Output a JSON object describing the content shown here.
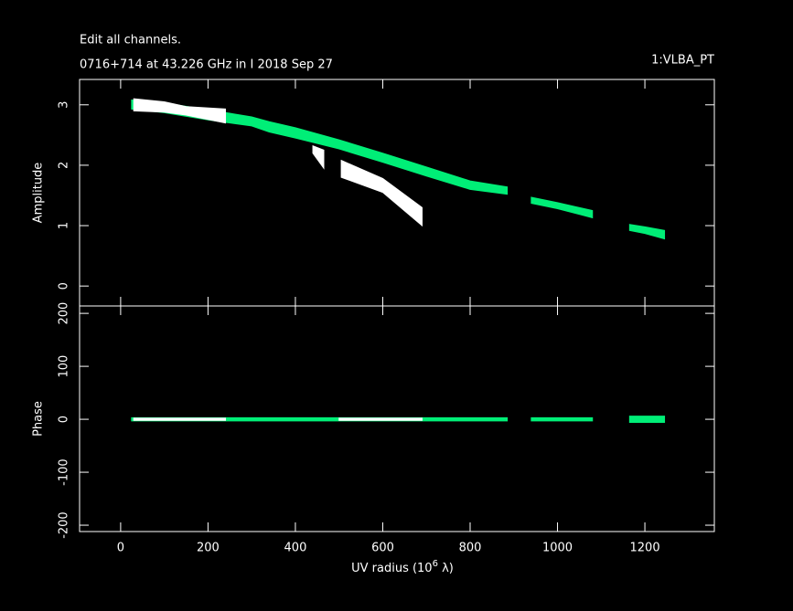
{
  "chart_data": [
    {
      "type": "band",
      "title": "Edit all channels.",
      "subtitle": "0716+714 at 43.226 GHz in I  2018 Sep 27",
      "annotation": "1:VLBA_PT",
      "y_label": "Amplitude",
      "xlim": [
        -94,
        1359
      ],
      "ylim": [
        -0.33,
        3.42
      ],
      "yticks": [
        0,
        1,
        2,
        3
      ],
      "series": [
        {
          "color": "#00ee77",
          "x": [
            25,
            100,
            200,
            300,
            340,
            400,
            500,
            600,
            700,
            800,
            885,
            915,
            940,
            1000,
            1080,
            1120,
            1165,
            1200,
            1245
          ],
          "low": [
            2.93,
            2.87,
            2.75,
            2.65,
            2.55,
            2.45,
            2.27,
            2.05,
            1.82,
            1.6,
            1.52,
            null,
            1.37,
            1.28,
            1.13,
            null,
            0.92,
            0.87,
            0.78
          ],
          "high": [
            3.08,
            3.03,
            2.92,
            2.8,
            2.72,
            2.62,
            2.42,
            2.2,
            1.97,
            1.74,
            1.64,
            null,
            1.47,
            1.38,
            1.25,
            null,
            1.02,
            0.98,
            0.92
          ]
        },
        {
          "color": "#ffffff",
          "x": [
            30,
            100,
            150,
            240,
            260,
            440,
            465,
            480,
            505,
            600,
            690
          ],
          "low": [
            2.9,
            2.88,
            2.83,
            2.7,
            null,
            2.2,
            1.95,
            null,
            1.8,
            1.55,
            1.0
          ],
          "high": [
            3.1,
            3.05,
            2.97,
            2.93,
            null,
            2.32,
            2.25,
            null,
            2.08,
            1.78,
            1.3
          ]
        }
      ]
    },
    {
      "type": "band",
      "y_label": "Phase",
      "x_label": [
        "UV radius  (10",
        "6",
        " λ)"
      ],
      "xlim": [
        -94,
        1359
      ],
      "ylim": [
        -212,
        214
      ],
      "xticks": [
        0,
        200,
        400,
        600,
        800,
        1000,
        1200
      ],
      "yticks": [
        -200,
        -100,
        0,
        100,
        200
      ],
      "series": [
        {
          "color": "#00ee77",
          "x": [
            25,
            500,
            885,
            915,
            940,
            1080,
            1120,
            1165,
            1245
          ],
          "low": [
            -3,
            -3,
            -3,
            null,
            -3,
            -3,
            null,
            -6,
            -6
          ],
          "high": [
            3,
            3,
            3,
            null,
            3,
            3,
            null,
            6,
            6
          ]
        },
        {
          "color": "#ffffff",
          "x": [
            30,
            240,
            260,
            500,
            690
          ],
          "low": [
            -2,
            -2,
            null,
            -2,
            -2
          ],
          "high": [
            2,
            2,
            null,
            2,
            2
          ]
        }
      ]
    }
  ]
}
